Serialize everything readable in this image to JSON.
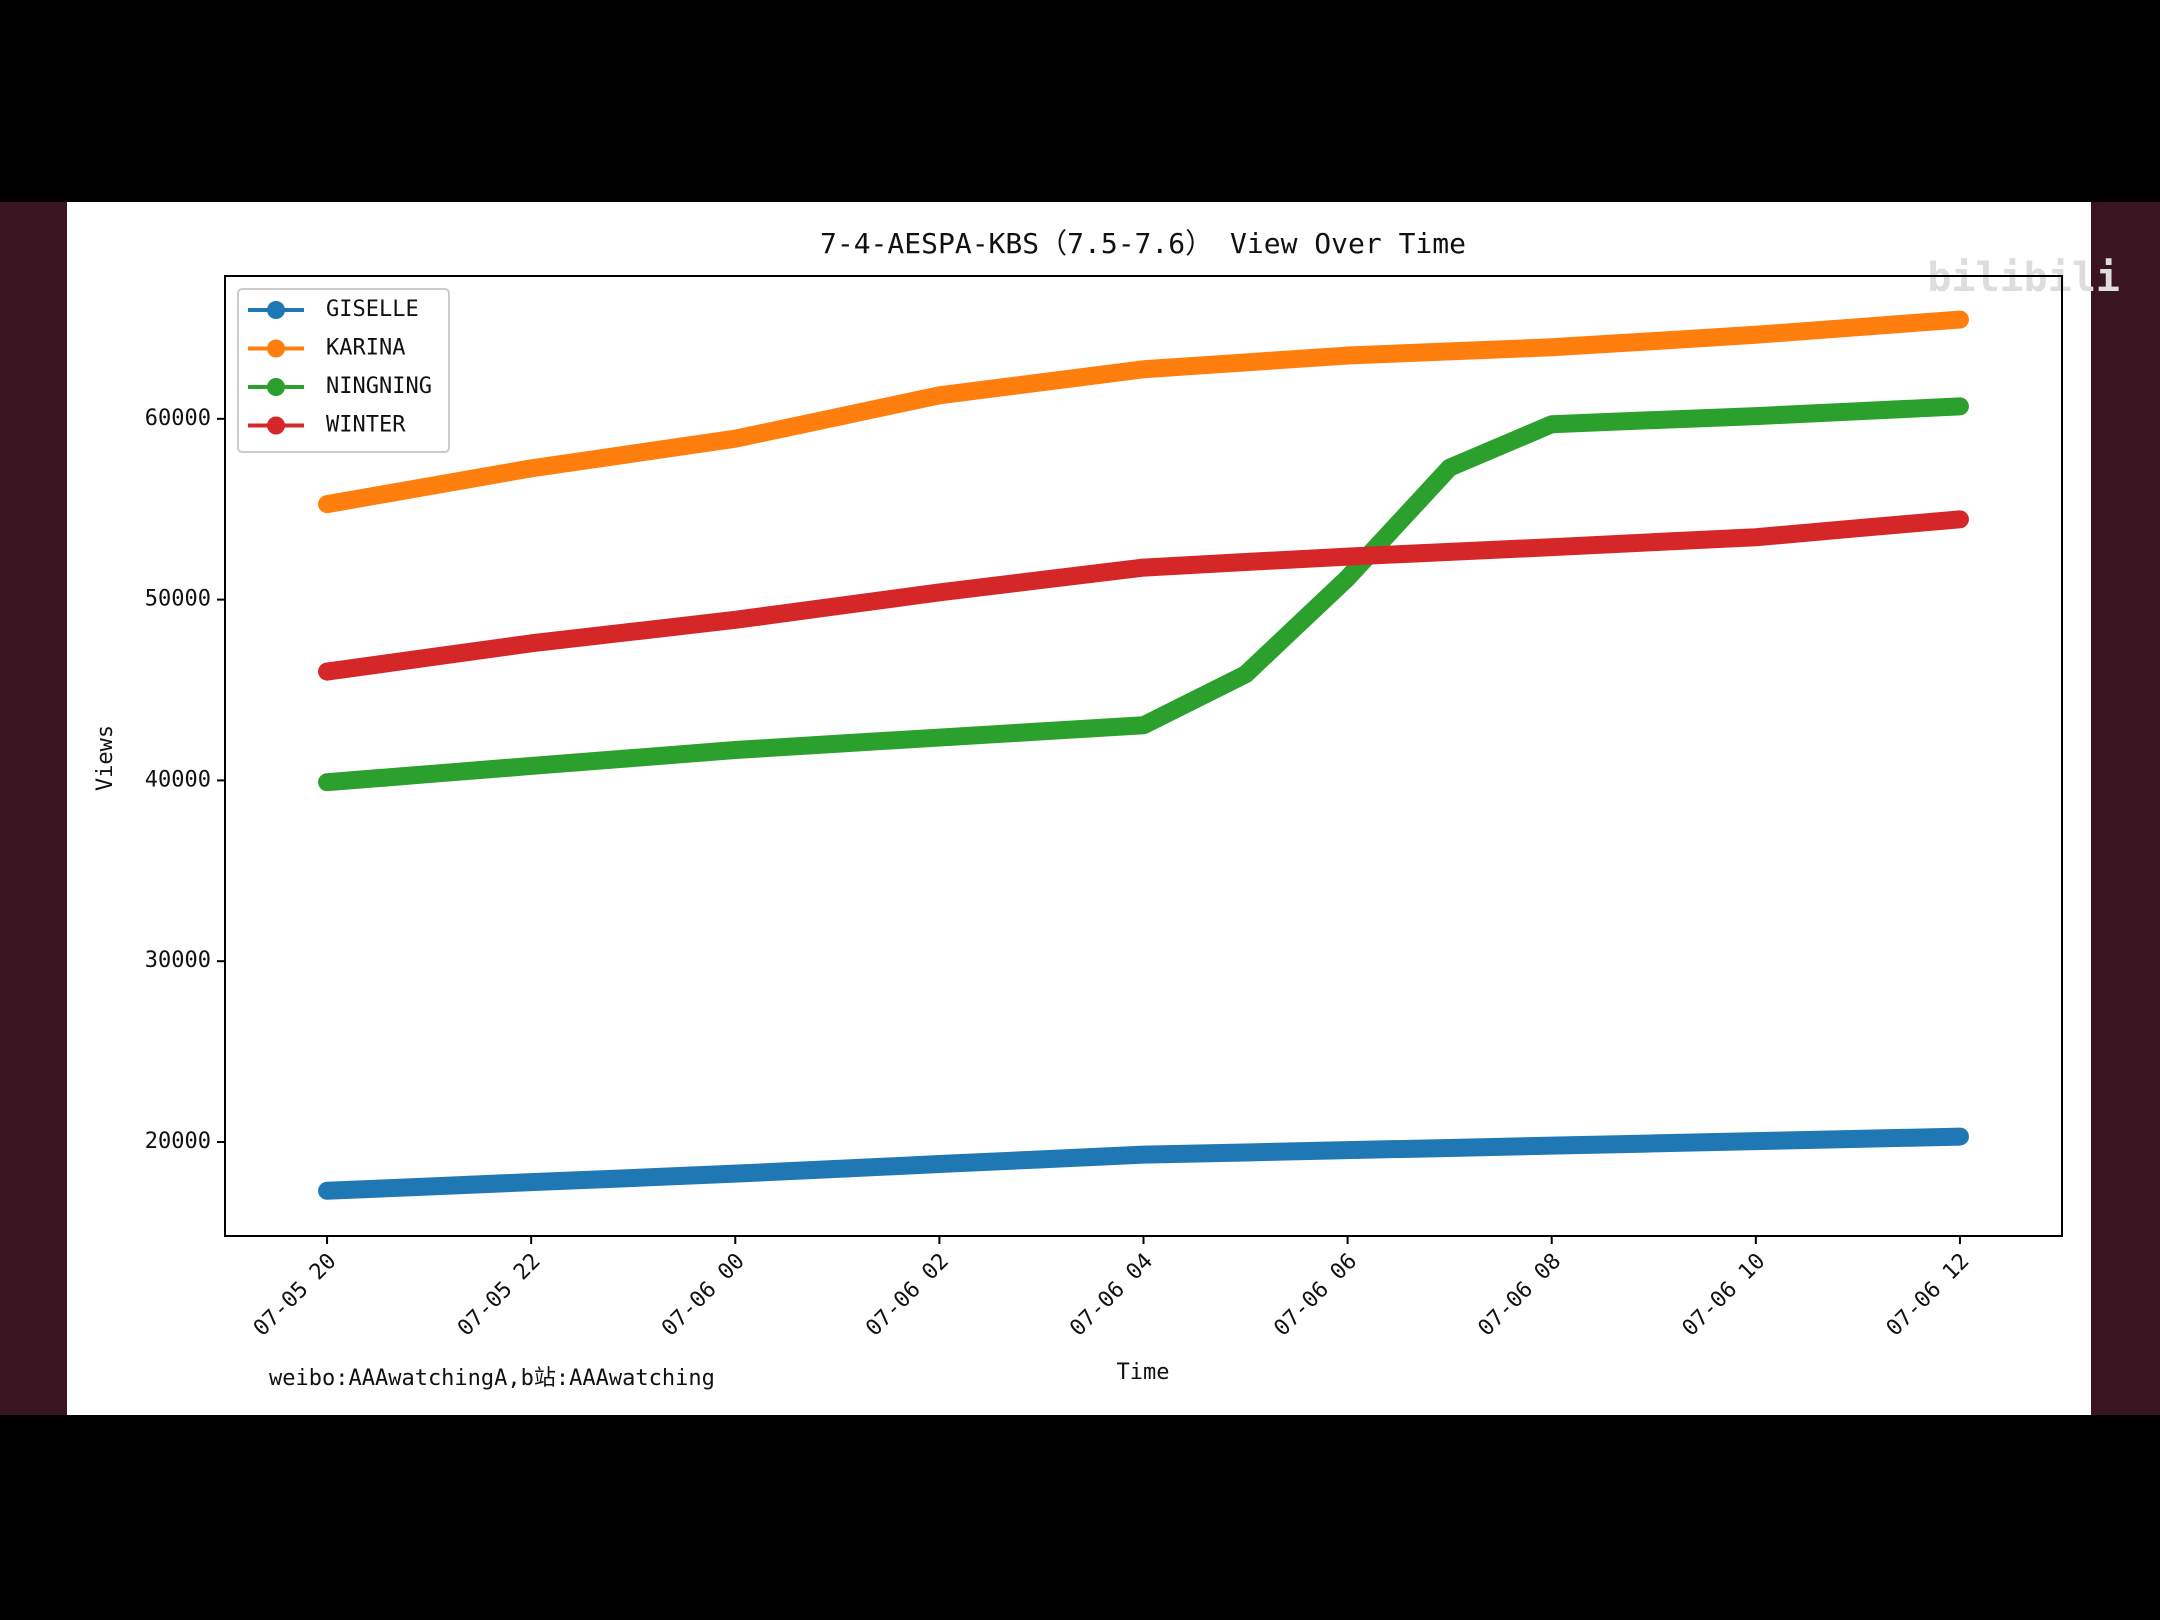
{
  "chart_data": {
    "type": "line",
    "title": "7-4-AESPA-KBS（7.5-7.6） View Over Time",
    "x_label": "Time",
    "y_label": "Views",
    "footnote": "weibo:AAAwatchingA,b站:AAAwatching",
    "watermark": "bilibili",
    "x": [
      "07-05 20",
      "07-05 21",
      "07-05 22",
      "07-05 23",
      "07-06 00",
      "07-06 01",
      "07-06 02",
      "07-06 03",
      "07-06 04",
      "07-06 05",
      "07-06 06",
      "07-06 07",
      "07-06 08",
      "07-06 09",
      "07-06 10",
      "07-06 11",
      "07-06 12"
    ],
    "xlim": [
      "07-05 19",
      "07-06 13"
    ],
    "xticks": [
      "07-05 20",
      "07-05 22",
      "07-06 00",
      "07-06 02",
      "07-06 04",
      "07-06 06",
      "07-06 08",
      "07-06 10",
      "07-06 12"
    ],
    "ylim": [
      14800,
      67900
    ],
    "yticks": [
      20000,
      30000,
      40000,
      50000,
      60000
    ],
    "legend": "upper left",
    "series": [
      {
        "name": "GISELLE",
        "color": "#1f77b4",
        "values": [
          17300,
          17540,
          17780,
          18010,
          18250,
          18510,
          18780,
          19040,
          19300,
          19420,
          19550,
          19670,
          19800,
          19920,
          20050,
          20170,
          20300
        ]
      },
      {
        "name": "KARINA",
        "color": "#ff7f0e",
        "values": [
          55280,
          56270,
          57260,
          58080,
          58900,
          60100,
          61300,
          62020,
          62740,
          63120,
          63500,
          63730,
          63960,
          64300,
          64650,
          65070,
          65490
        ]
      },
      {
        "name": "NINGNING",
        "color": "#2ca02c",
        "values": [
          39900,
          40350,
          40800,
          41240,
          41680,
          42030,
          42370,
          42710,
          43050,
          45870,
          51200,
          57300,
          59700,
          59930,
          60150,
          60420,
          60690
        ]
      },
      {
        "name": "WINTER",
        "color": "#d62728",
        "values": [
          46020,
          46800,
          47580,
          48230,
          48880,
          49640,
          50400,
          51090,
          51770,
          52080,
          52380,
          52640,
          52900,
          53180,
          53450,
          53950,
          54440
        ]
      }
    ]
  }
}
